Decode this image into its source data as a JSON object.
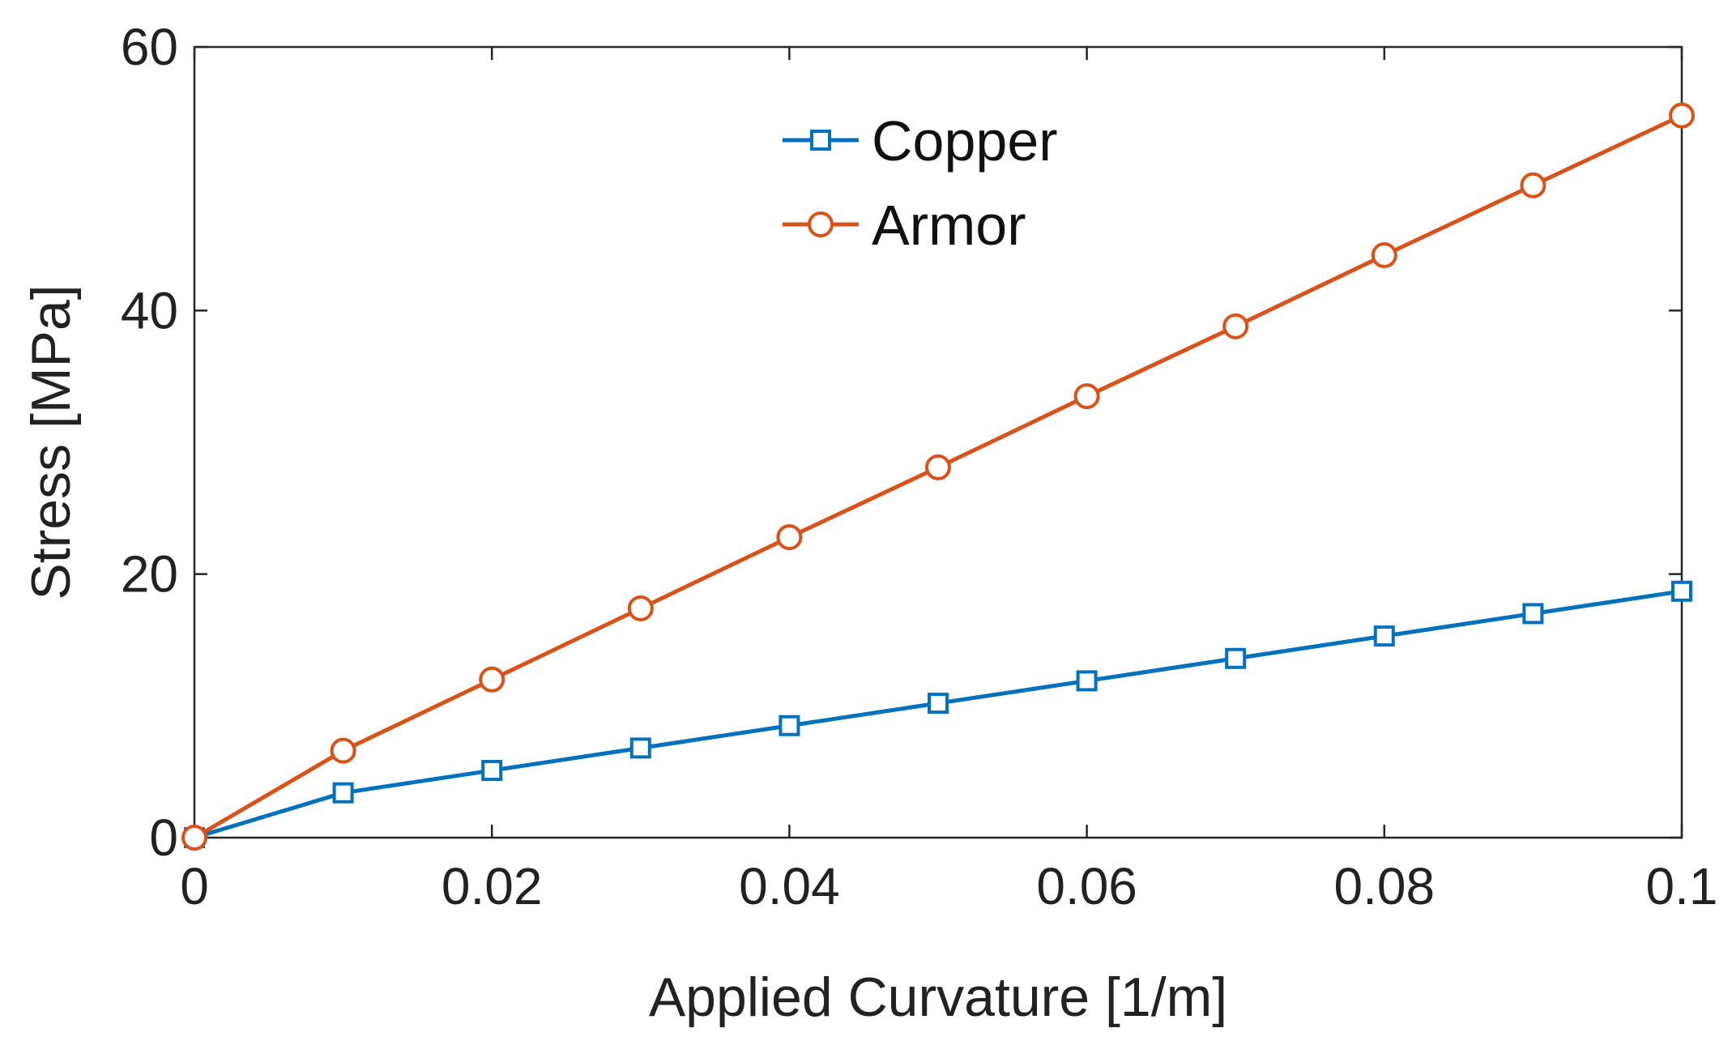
{
  "chart_data": {
    "type": "line",
    "title": "",
    "xlabel": "Applied Curvature [1/m]",
    "ylabel": "Stress [MPa]",
    "xlim": [
      0,
      0.1
    ],
    "ylim": [
      0,
      60
    ],
    "xticks": [
      0,
      0.02,
      0.04,
      0.06,
      0.08,
      0.1
    ],
    "xtick_labels": [
      "0",
      "0.02",
      "0.04",
      "0.06",
      "0.08",
      "0.1"
    ],
    "yticks": [
      0,
      20,
      40,
      60
    ],
    "ytick_labels": [
      "0",
      "20",
      "40",
      "60"
    ],
    "grid": false,
    "legend_position": "top-center",
    "x": [
      0,
      0.01,
      0.02,
      0.03,
      0.04,
      0.05,
      0.06,
      0.07,
      0.08,
      0.09,
      0.1
    ],
    "series": [
      {
        "name": "Copper",
        "color": "#0072BD",
        "marker": "square",
        "values": [
          0,
          3.4,
          5.1,
          6.8,
          8.5,
          10.2,
          11.9,
          13.6,
          15.3,
          17.0,
          18.7
        ]
      },
      {
        "name": "Armor",
        "color": "#D95319",
        "marker": "circle",
        "values": [
          0,
          6.6,
          12.0,
          17.4,
          22.8,
          28.1,
          33.5,
          38.8,
          44.2,
          49.5,
          54.8
        ]
      }
    ]
  }
}
